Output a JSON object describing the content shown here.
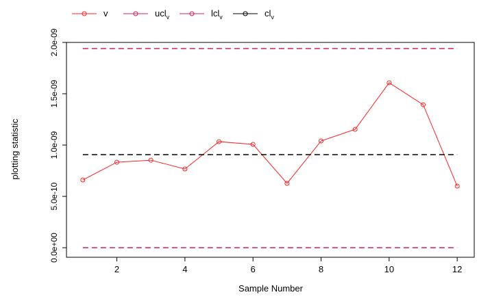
{
  "chart_data": {
    "type": "line",
    "x_label": "Sample Number",
    "y_label": "plotting statistic",
    "x": [
      1,
      2,
      3,
      4,
      5,
      6,
      7,
      8,
      9,
      10,
      11,
      12
    ],
    "series": [
      {
        "name": "v",
        "color": "#ff2020",
        "dashed": false,
        "markers": true,
        "values": [
          6.6e-10,
          8.33e-10,
          8.53e-10,
          7.67e-10,
          1.033e-09,
          1.007e-09,
          6.27e-10,
          1.04e-09,
          1.153e-09,
          1.607e-09,
          1.393e-09,
          6e-10
        ]
      },
      {
        "name": "ucl",
        "subscript": "v",
        "color": "#d0205a",
        "dashed": true,
        "markers": false,
        "values": [
          1.94e-09,
          1.94e-09,
          1.94e-09,
          1.94e-09,
          1.94e-09,
          1.94e-09,
          1.94e-09,
          1.94e-09,
          1.94e-09,
          1.94e-09,
          1.94e-09,
          1.94e-09
        ]
      },
      {
        "name": "lcl",
        "subscript": "v",
        "color": "#d0205a",
        "dashed": true,
        "markers": false,
        "values": [
          0,
          0,
          0,
          0,
          0,
          0,
          0,
          0,
          0,
          0,
          0,
          0
        ]
      },
      {
        "name": "cl",
        "subscript": "v",
        "color": "#000000",
        "dashed": true,
        "markers": false,
        "values": [
          9.07e-10,
          9.07e-10,
          9.07e-10,
          9.07e-10,
          9.07e-10,
          9.07e-10,
          9.07e-10,
          9.07e-10,
          9.07e-10,
          9.07e-10,
          9.07e-10,
          9.07e-10
        ]
      }
    ],
    "xlim": [
      0.52,
      12.5
    ],
    "xticks": [
      2,
      4,
      6,
      8,
      10,
      12
    ],
    "ylim": [
      -9.3e-11,
      2e-09
    ],
    "yticks": [
      {
        "value": 0,
        "label": "0.0e+00"
      },
      {
        "value": 5e-10,
        "label": "5.0e-10"
      },
      {
        "value": 1e-09,
        "label": "1.0e-09"
      },
      {
        "value": 1.5e-09,
        "label": "1.5e-09"
      },
      {
        "value": 2e-09,
        "label": "2.0e-09"
      }
    ],
    "legend": "top-left"
  }
}
